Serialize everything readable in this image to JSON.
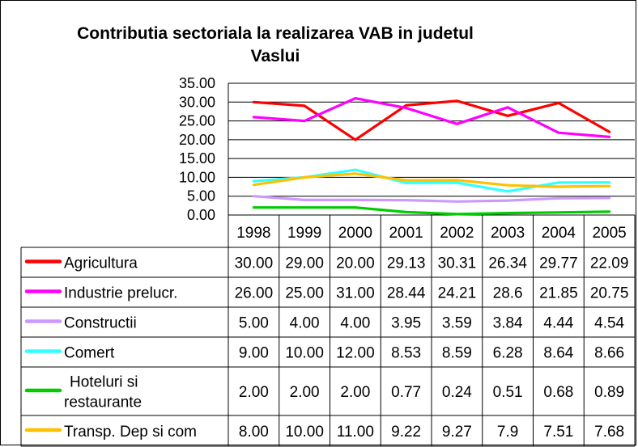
{
  "chart_data": {
    "type": "line",
    "title_lines": [
      "Contributia sectoriala la realizarea VAB in judetul",
      "Vaslui"
    ],
    "categories": [
      "1998",
      "1999",
      "2000",
      "2001",
      "2002",
      "2003",
      "2004",
      "2005"
    ],
    "ylim": [
      0,
      35
    ],
    "yticks": [
      "0.00",
      "5.00",
      "10.00",
      "15.00",
      "20.00",
      "25.00",
      "30.00",
      "35.00"
    ],
    "grid": true,
    "legend": "table-below",
    "series": [
      {
        "name": "Agricultura",
        "color": "#ff0000",
        "values": [
          30.0,
          29.0,
          20.0,
          29.13,
          30.31,
          26.34,
          29.77,
          22.09
        ],
        "labels": [
          "30.00",
          "29.00",
          "20.00",
          "29.13",
          "30.31",
          "26.34",
          "29.77",
          "22.09"
        ]
      },
      {
        "name": "Industrie prelucr.",
        "color": "#ff00ff",
        "values": [
          26.0,
          25.0,
          31.0,
          28.44,
          24.21,
          28.6,
          21.85,
          20.75
        ],
        "labels": [
          "26.00",
          "25.00",
          "31.00",
          "28.44",
          "24.21",
          "28.6",
          "21.85",
          "20.75"
        ]
      },
      {
        "name": "Constructii",
        "color": "#cc99ff",
        "values": [
          5.0,
          4.0,
          4.0,
          3.95,
          3.59,
          3.84,
          4.44,
          4.54
        ],
        "labels": [
          "5.00",
          "4.00",
          "4.00",
          "3.95",
          "3.59",
          "3.84",
          "4.44",
          "4.54"
        ]
      },
      {
        "name": "Comert",
        "color": "#33ffff",
        "values": [
          9.0,
          10.0,
          12.0,
          8.53,
          8.59,
          6.28,
          8.64,
          8.66
        ],
        "labels": [
          "9.00",
          "10.00",
          "12.00",
          "8.53",
          "8.59",
          "6.28",
          "8.64",
          "8.66"
        ]
      },
      {
        "name": "Hoteluri si restaurante",
        "name_lines": [
          "Hoteluri si",
          "restaurante"
        ],
        "color": "#00cc00",
        "values": [
          2.0,
          2.0,
          2.0,
          0.77,
          0.24,
          0.51,
          0.68,
          0.89
        ],
        "labels": [
          "2.00",
          "2.00",
          "2.00",
          "0.77",
          "0.24",
          "0.51",
          "0.68",
          "0.89"
        ]
      },
      {
        "name": "Transp. Dep si com",
        "color": "#ffc000",
        "values": [
          8.0,
          10.0,
          11.0,
          9.22,
          9.27,
          7.9,
          7.51,
          7.68
        ],
        "labels": [
          "8.00",
          "10.00",
          "11.00",
          "9.22",
          "9.27",
          "7.9",
          "7.51",
          "7.68"
        ]
      }
    ]
  }
}
